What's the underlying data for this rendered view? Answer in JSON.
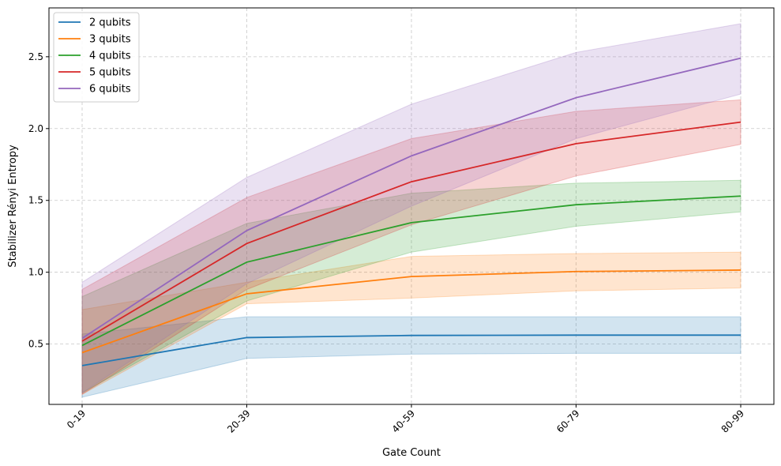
{
  "chart_data": {
    "type": "line",
    "title": "",
    "xlabel": "Gate Count",
    "ylabel": "Stabilizer Rényi Entropy",
    "categories": [
      "0-19",
      "20-39",
      "40-59",
      "60-79",
      "80-99"
    ],
    "yticks": [
      0.5,
      1.0,
      1.5,
      2.0,
      2.5
    ],
    "ytick_labels": [
      "0.5",
      "1.0",
      "1.5",
      "2.0",
      "2.5"
    ],
    "ylim": [
      0.08,
      2.84
    ],
    "grid": true,
    "legend_position": "top-left",
    "series": [
      {
        "name": "2 qubits",
        "color": "#1f77b4",
        "values": [
          0.35,
          0.545,
          0.56,
          0.562,
          0.562
        ],
        "lower": [
          0.13,
          0.4,
          0.43,
          0.435,
          0.435
        ],
        "upper": [
          0.57,
          0.69,
          0.69,
          0.69,
          0.69
        ]
      },
      {
        "name": "3 qubits",
        "color": "#ff7f0e",
        "values": [
          0.44,
          0.85,
          0.97,
          1.005,
          1.015
        ],
        "lower": [
          0.15,
          0.78,
          0.82,
          0.87,
          0.89
        ],
        "upper": [
          0.74,
          0.93,
          1.11,
          1.13,
          1.14
        ]
      },
      {
        "name": "4 qubits",
        "color": "#2ca02c",
        "values": [
          0.49,
          1.07,
          1.345,
          1.47,
          1.53
        ],
        "lower": [
          0.16,
          0.8,
          1.14,
          1.32,
          1.42
        ],
        "upper": [
          0.83,
          1.34,
          1.55,
          1.62,
          1.64
        ]
      },
      {
        "name": "5 qubits",
        "color": "#d62728",
        "values": [
          0.52,
          1.2,
          1.63,
          1.895,
          2.045
        ],
        "lower": [
          0.15,
          0.88,
          1.33,
          1.67,
          1.89
        ],
        "upper": [
          0.88,
          1.52,
          1.93,
          2.12,
          2.2
        ]
      },
      {
        "name": "6 qubits",
        "color": "#9467bd",
        "values": [
          0.54,
          1.29,
          1.81,
          2.215,
          2.49
        ],
        "lower": [
          0.16,
          0.92,
          1.46,
          1.93,
          2.24
        ],
        "upper": [
          0.93,
          1.66,
          2.17,
          2.53,
          2.73
        ]
      }
    ]
  }
}
